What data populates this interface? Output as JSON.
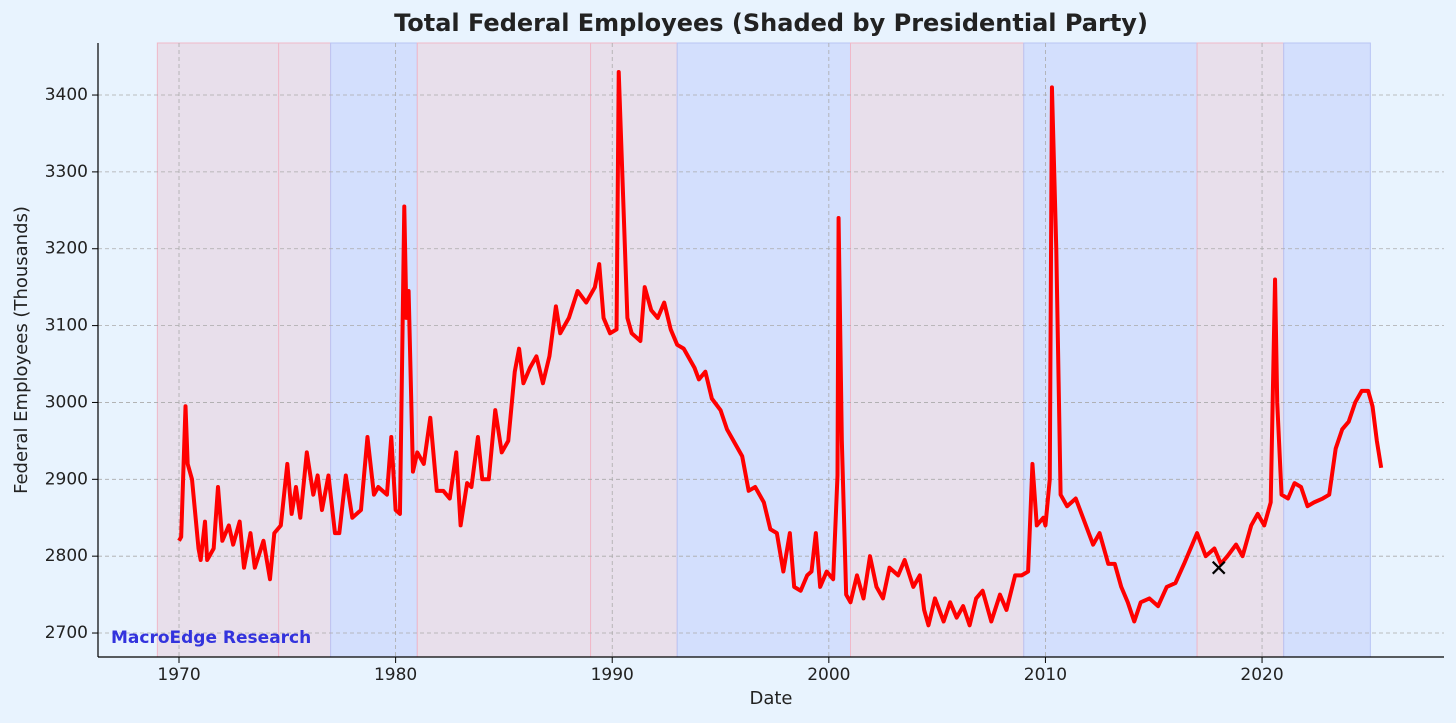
{
  "chart_data": {
    "type": "line",
    "title": "Total Federal Employees (Shaded by Presidential Party)",
    "xlabel": "Date",
    "ylabel": "Federal Employees (Thousands)",
    "watermark": "MacroEdge Research",
    "xlim": [
      1966.26,
      2028.4
    ],
    "ylim": [
      2668.8,
      3467.7
    ],
    "xticks": [
      1970,
      1980,
      1990,
      2000,
      2010,
      2020
    ],
    "yticks": [
      2700,
      2800,
      2900,
      3000,
      3100,
      3200,
      3300,
      3400
    ],
    "grid": true,
    "shading": [
      {
        "start": 1969,
        "end": 1974.6,
        "color": "#e8dfeb"
      },
      {
        "start": 1974.6,
        "end": 1977,
        "color": "#e8dfeb"
      },
      {
        "start": 1977,
        "end": 1981,
        "color": "#d3dffd"
      },
      {
        "start": 1981,
        "end": 1989,
        "color": "#e8dfeb"
      },
      {
        "start": 1989,
        "end": 1993,
        "color": "#e8dfeb"
      },
      {
        "start": 1993,
        "end": 2001,
        "color": "#d3dffd"
      },
      {
        "start": 2001,
        "end": 2009,
        "color": "#e8dfeb"
      },
      {
        "start": 2009,
        "end": 2017,
        "color": "#d3dffd"
      },
      {
        "start": 2017,
        "end": 2021,
        "color": "#e8dfeb"
      },
      {
        "start": 2021,
        "end": 2025,
        "color": "#d3dffd"
      }
    ],
    "marker": {
      "x": 2018.0,
      "y": 2785,
      "color": "#000000"
    },
    "series": [
      {
        "color": "#ff0000",
        "x": [
          1970.0,
          1970.1,
          1970.3,
          1970.4,
          1970.6,
          1970.9,
          1971.0,
          1971.2,
          1971.3,
          1971.6,
          1971.8,
          1972.0,
          1972.3,
          1972.5,
          1972.8,
          1973.0,
          1973.3,
          1973.5,
          1973.9,
          1974.2,
          1974.4,
          1974.7,
          1975.0,
          1975.2,
          1975.4,
          1975.6,
          1975.9,
          1976.2,
          1976.4,
          1976.6,
          1976.9,
          1977.2,
          1977.4,
          1977.7,
          1978.0,
          1978.4,
          1978.7,
          1979.0,
          1979.2,
          1979.6,
          1979.8,
          1980.0,
          1980.2,
          1980.4,
          1980.5,
          1980.6,
          1980.8,
          1981.0,
          1981.3,
          1981.6,
          1981.9,
          1982.2,
          1982.5,
          1982.8,
          1983.0,
          1983.3,
          1983.5,
          1983.8,
          1984.0,
          1984.3,
          1984.6,
          1984.9,
          1985.2,
          1985.5,
          1985.7,
          1985.9,
          1986.2,
          1986.5,
          1986.8,
          1987.1,
          1987.4,
          1987.6,
          1988.0,
          1988.4,
          1988.8,
          1989.2,
          1989.4,
          1989.6,
          1989.9,
          1990.2,
          1990.3,
          1990.5,
          1990.7,
          1990.9,
          1991.3,
          1991.5,
          1991.8,
          1992.1,
          1992.4,
          1992.7,
          1993.0,
          1993.3,
          1993.8,
          1994.0,
          1994.3,
          1994.6,
          1995.0,
          1995.3,
          1995.6,
          1996.0,
          1996.3,
          1996.6,
          1997.0,
          1997.3,
          1997.6,
          1997.9,
          1998.2,
          1998.4,
          1998.7,
          1999.0,
          1999.2,
          1999.4,
          1999.6,
          1999.9,
          2000.2,
          2000.4,
          2000.45,
          2000.6,
          2000.8,
          2001.0,
          2001.3,
          2001.6,
          2001.9,
          2002.2,
          2002.5,
          2002.8,
          2003.2,
          2003.5,
          2003.9,
          2004.2,
          2004.4,
          2004.6,
          2004.9,
          2005.3,
          2005.6,
          2005.9,
          2006.2,
          2006.5,
          2006.8,
          2007.1,
          2007.5,
          2007.9,
          2008.2,
          2008.6,
          2008.9,
          2009.2,
          2009.4,
          2009.6,
          2009.9,
          2010.0,
          2010.2,
          2010.3,
          2010.5,
          2010.7,
          2011.0,
          2011.4,
          2011.8,
          2012.2,
          2012.5,
          2012.9,
          2013.2,
          2013.5,
          2013.8,
          2014.1,
          2014.4,
          2014.8,
          2015.2,
          2015.6,
          2016.0,
          2016.4,
          2016.7,
          2017.0,
          2017.4,
          2017.8,
          2018.1,
          2018.4,
          2018.8,
          2019.1,
          2019.5,
          2019.8,
          2020.1,
          2020.4,
          2020.6,
          2020.7,
          2020.9,
          2021.2,
          2021.5,
          2021.8,
          2022.1,
          2022.4,
          2022.8,
          2023.1,
          2023.4,
          2023.7,
          2024.0,
          2024.3,
          2024.6,
          2024.9,
          2025.1,
          2025.3,
          2025.5
        ],
        "values": [
          2820,
          2825,
          2995,
          2920,
          2900,
          2810,
          2795,
          2845,
          2795,
          2810,
          2890,
          2820,
          2840,
          2815,
          2845,
          2785,
          2830,
          2785,
          2820,
          2770,
          2830,
          2840,
          2920,
          2855,
          2890,
          2850,
          2935,
          2880,
          2905,
          2860,
          2905,
          2830,
          2830,
          2905,
          2850,
          2860,
          2955,
          2880,
          2890,
          2880,
          2955,
          2860,
          2855,
          3255,
          3110,
          3145,
          2910,
          2935,
          2920,
          2980,
          2885,
          2885,
          2875,
          2935,
          2840,
          2895,
          2890,
          2955,
          2900,
          2900,
          2990,
          2935,
          2950,
          3040,
          3070,
          3025,
          3045,
          3060,
          3025,
          3060,
          3125,
          3090,
          3110,
          3145,
          3130,
          3150,
          3180,
          3110,
          3090,
          3095,
          3430,
          3270,
          3110,
          3090,
          3080,
          3150,
          3120,
          3110,
          3130,
          3095,
          3075,
          3070,
          3045,
          3030,
          3040,
          3005,
          2990,
          2965,
          2950,
          2930,
          2885,
          2890,
          2870,
          2835,
          2830,
          2780,
          2830,
          2760,
          2755,
          2775,
          2780,
          2830,
          2760,
          2780,
          2770,
          2905,
          3240,
          2950,
          2750,
          2740,
          2775,
          2745,
          2800,
          2760,
          2745,
          2785,
          2775,
          2795,
          2760,
          2775,
          2730,
          2710,
          2745,
          2715,
          2740,
          2720,
          2735,
          2710,
          2745,
          2755,
          2715,
          2750,
          2730,
          2775,
          2775,
          2780,
          2920,
          2840,
          2850,
          2840,
          2900,
          3410,
          3200,
          2880,
          2865,
          2875,
          2845,
          2815,
          2830,
          2790,
          2790,
          2760,
          2740,
          2715,
          2740,
          2745,
          2735,
          2760,
          2765,
          2790,
          2810,
          2830,
          2800,
          2810,
          2790,
          2800,
          2815,
          2800,
          2840,
          2855,
          2840,
          2870,
          3160,
          3000,
          2880,
          2875,
          2895,
          2890,
          2865,
          2870,
          2875,
          2880,
          2940,
          2965,
          2975,
          3000,
          3015,
          3015,
          2995,
          2950,
          2915
        ]
      }
    ]
  }
}
